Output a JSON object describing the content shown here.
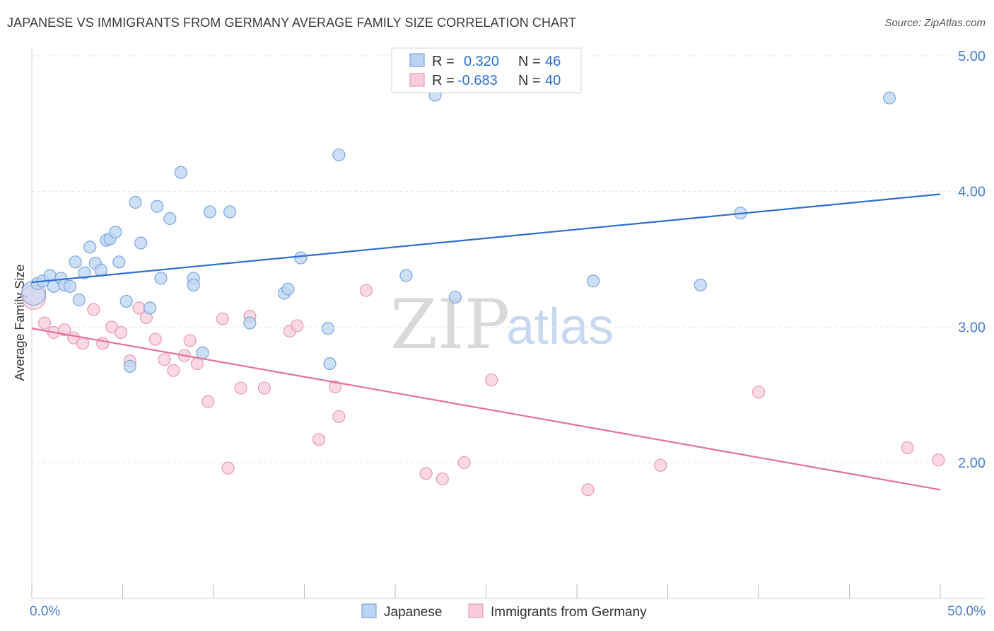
{
  "header": {
    "title": "JAPANESE VS IMMIGRANTS FROM GERMANY AVERAGE FAMILY SIZE CORRELATION CHART",
    "source": "Source: ZipAtlas.com"
  },
  "legend_top": {
    "rows": [
      {
        "r_label": "R =",
        "r_value": "0.320",
        "n_label": "N =",
        "n_value": "46"
      },
      {
        "r_label": "R =",
        "r_value": "-0.683",
        "n_label": "N =",
        "n_value": "40"
      }
    ]
  },
  "watermark": {
    "zip": "ZIP",
    "atlas": "atlas"
  },
  "colors": {
    "japanese_fill": "#bcd4f2",
    "japanese_stroke": "#7aa6e0",
    "japanese_line": "#2d6fd0",
    "germany_fill": "#f8ccd9",
    "germany_stroke": "#e99ab3",
    "germany_line": "#e5709a",
    "grid": "#e3e3e3",
    "tick_label": "#4a7fd0"
  },
  "chart_data": {
    "type": "scatter",
    "title": "JAPANESE VS IMMIGRANTS FROM GERMANY AVERAGE FAMILY SIZE CORRELATION CHART",
    "xlabel": "",
    "ylabel": "Average Family Size",
    "xlim": [
      0,
      50
    ],
    "ylim": [
      1.05,
      5.1
    ],
    "x_tick_labels": [
      "0.0%",
      "50.0%"
    ],
    "y_ticks": [
      2.0,
      3.0,
      4.0,
      5.0
    ],
    "y_tick_labels": [
      "2.00",
      "3.00",
      "4.00",
      "5.00"
    ],
    "grid": true,
    "legend_position": "top-center",
    "series": [
      {
        "name": "Japanese",
        "R": 0.32,
        "N": 46,
        "trend": {
          "x": [
            0,
            50
          ],
          "y": [
            3.33,
            3.98
          ]
        },
        "points": [
          [
            0.1,
            3.25
          ],
          [
            0.3,
            3.32
          ],
          [
            0.6,
            3.34
          ],
          [
            1.0,
            3.38
          ],
          [
            1.2,
            3.3
          ],
          [
            1.6,
            3.36
          ],
          [
            1.8,
            3.31
          ],
          [
            2.1,
            3.3
          ],
          [
            2.4,
            3.48
          ],
          [
            2.6,
            3.2
          ],
          [
            2.9,
            3.4
          ],
          [
            3.2,
            3.59
          ],
          [
            3.5,
            3.47
          ],
          [
            3.8,
            3.42
          ],
          [
            4.1,
            3.64
          ],
          [
            4.3,
            3.65
          ],
          [
            4.6,
            3.7
          ],
          [
            4.8,
            3.48
          ],
          [
            5.2,
            3.19
          ],
          [
            5.4,
            2.71
          ],
          [
            5.7,
            3.92
          ],
          [
            6.0,
            3.62
          ],
          [
            6.5,
            3.14
          ],
          [
            6.9,
            3.89
          ],
          [
            7.1,
            3.36
          ],
          [
            7.6,
            3.8
          ],
          [
            8.2,
            4.14
          ],
          [
            8.9,
            3.36
          ],
          [
            8.9,
            3.31
          ],
          [
            9.4,
            2.81
          ],
          [
            9.8,
            3.85
          ],
          [
            10.9,
            3.85
          ],
          [
            12.0,
            3.03
          ],
          [
            13.9,
            3.25
          ],
          [
            14.1,
            3.28
          ],
          [
            14.8,
            3.51
          ],
          [
            16.3,
            2.99
          ],
          [
            16.4,
            2.73
          ],
          [
            16.9,
            4.27
          ],
          [
            20.6,
            3.38
          ],
          [
            22.2,
            4.71
          ],
          [
            23.3,
            3.22
          ],
          [
            30.9,
            3.34
          ],
          [
            36.8,
            3.31
          ],
          [
            39.0,
            3.84
          ],
          [
            47.2,
            4.69
          ]
        ]
      },
      {
        "name": "Immigrants from Germany",
        "R": -0.683,
        "N": 40,
        "trend": {
          "x": [
            0,
            50
          ],
          "y": [
            2.99,
            1.8
          ]
        },
        "points": [
          [
            0.1,
            3.22
          ],
          [
            0.7,
            3.03
          ],
          [
            1.2,
            2.96
          ],
          [
            1.8,
            2.98
          ],
          [
            2.3,
            2.92
          ],
          [
            2.8,
            2.88
          ],
          [
            3.4,
            3.13
          ],
          [
            3.9,
            2.88
          ],
          [
            4.4,
            3.0
          ],
          [
            4.9,
            2.96
          ],
          [
            5.4,
            2.75
          ],
          [
            5.9,
            3.14
          ],
          [
            6.3,
            3.07
          ],
          [
            6.8,
            2.91
          ],
          [
            7.3,
            2.76
          ],
          [
            7.8,
            2.68
          ],
          [
            8.4,
            2.79
          ],
          [
            8.7,
            2.9
          ],
          [
            9.1,
            2.73
          ],
          [
            9.7,
            2.45
          ],
          [
            10.5,
            3.06
          ],
          [
            10.8,
            1.96
          ],
          [
            11.5,
            2.55
          ],
          [
            12.0,
            3.08
          ],
          [
            12.8,
            2.55
          ],
          [
            14.2,
            2.97
          ],
          [
            14.6,
            3.01
          ],
          [
            15.8,
            2.17
          ],
          [
            16.7,
            2.56
          ],
          [
            16.9,
            2.34
          ],
          [
            18.4,
            3.27
          ],
          [
            21.7,
            1.92
          ],
          [
            22.6,
            1.88
          ],
          [
            23.8,
            2.0
          ],
          [
            25.3,
            2.61
          ],
          [
            30.6,
            1.8
          ],
          [
            34.6,
            1.98
          ],
          [
            40.0,
            2.52
          ],
          [
            48.2,
            2.11
          ],
          [
            49.9,
            2.02
          ]
        ]
      }
    ]
  },
  "legend_bottom": {
    "items": [
      "Japanese",
      "Immigrants from Germany"
    ]
  }
}
